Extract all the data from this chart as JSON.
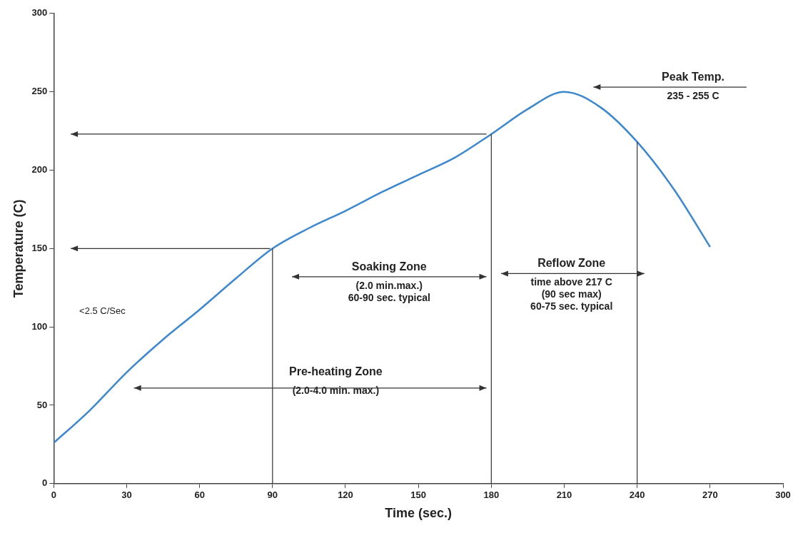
{
  "chart_data": {
    "type": "line",
    "xlabel": "Time (sec.)",
    "ylabel": "Temperature (C)",
    "x": [
      0,
      15,
      30,
      45,
      60,
      75,
      90,
      105,
      120,
      135,
      150,
      165,
      180,
      195,
      210,
      225,
      240,
      255,
      270
    ],
    "series": [
      {
        "color": "#3b87d0",
        "values": [
          26,
          47,
          71,
          92,
          111,
          131,
          150,
          163,
          174,
          186,
          197,
          208,
          223,
          239,
          250,
          240,
          218,
          188,
          151
        ]
      }
    ],
    "xlim": [
      0,
      300
    ],
    "xticks": [
      0,
      30,
      60,
      90,
      120,
      150,
      180,
      210,
      240,
      270,
      300
    ],
    "ylim": [
      0,
      300
    ],
    "yticks": [
      0,
      50,
      100,
      150,
      200,
      250,
      300
    ],
    "grid": false,
    "legend": false,
    "marker": "none",
    "line_style": "solid",
    "ref_lines": [
      {
        "axis": "x",
        "value": 90,
        "color": "#333333"
      },
      {
        "axis": "x",
        "value": 180,
        "color": "#333333"
      },
      {
        "axis": "x",
        "value": 240,
        "color": "#333333"
      }
    ],
    "annotations": [
      "Pre-heating Zone\n(2.0-4.0 min. max.)",
      "Soaking Zone\n(2.0 min.max.)\n60-90 sec. typical",
      "Reflow Zone\ntime above 217 C\n(90 sec max)\n60-75 sec. typical",
      "Peak Temp.\n235 - 255 C",
      "<2.5 C/Sec"
    ]
  }
}
